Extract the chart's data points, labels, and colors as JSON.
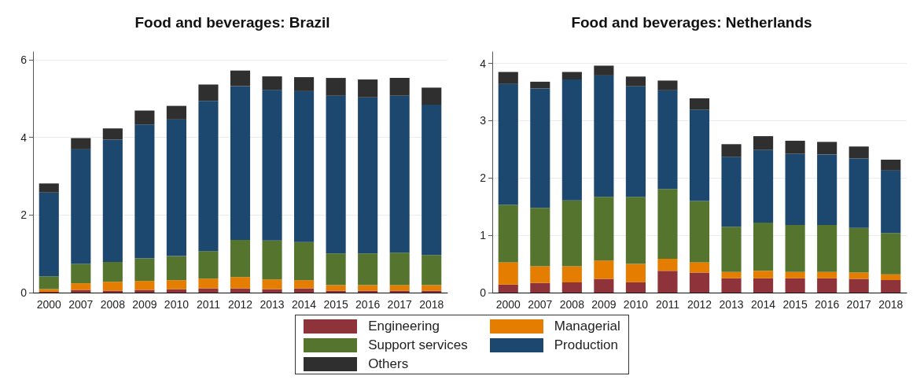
{
  "chart_data": [
    {
      "type": "bar",
      "title": "Food and beverages: Brazil",
      "stacked": true,
      "categories": [
        "2000",
        "2007",
        "2008",
        "2009",
        "2010",
        "2011",
        "2012",
        "2013",
        "2014",
        "2015",
        "2016",
        "2017",
        "2018"
      ],
      "ylim": [
        0,
        6.2
      ],
      "yticks": [
        0,
        2,
        4,
        6
      ],
      "grid": "y",
      "legend": "bottom",
      "series": [
        {
          "name": "Engineering",
          "color": "#8e3339",
          "values": [
            0.02,
            0.07,
            0.05,
            0.07,
            0.09,
            0.11,
            0.11,
            0.09,
            0.11,
            0.05,
            0.05,
            0.05,
            0.05
          ]
        },
        {
          "name": "Managerial",
          "color": "#e57e00",
          "values": [
            0.07,
            0.17,
            0.23,
            0.23,
            0.23,
            0.25,
            0.29,
            0.25,
            0.21,
            0.14,
            0.14,
            0.14,
            0.14
          ]
        },
        {
          "name": "Support services",
          "color": "#55752f",
          "values": [
            0.33,
            0.5,
            0.51,
            0.58,
            0.62,
            0.71,
            0.96,
            1.0,
            0.98,
            0.82,
            0.82,
            0.84,
            0.78
          ]
        },
        {
          "name": "Production",
          "color": "#1c476f",
          "values": [
            2.16,
            2.95,
            3.15,
            3.45,
            3.52,
            3.87,
            3.96,
            3.88,
            3.89,
            4.06,
            4.02,
            4.04,
            3.87
          ]
        },
        {
          "name": "Others",
          "color": "#2f2f2f",
          "values": [
            0.23,
            0.29,
            0.29,
            0.36,
            0.35,
            0.42,
            0.4,
            0.35,
            0.36,
            0.46,
            0.46,
            0.46,
            0.44
          ]
        }
      ]
    },
    {
      "type": "bar",
      "title": "Food and beverages: Netherlands",
      "stacked": true,
      "categories": [
        "2000",
        "2007",
        "2008",
        "2009",
        "2010",
        "2011",
        "2012",
        "2013",
        "2014",
        "2015",
        "2016",
        "2017",
        "2018"
      ],
      "ylim": [
        0,
        4.2
      ],
      "yticks": [
        0,
        1,
        2,
        3,
        4
      ],
      "grid": "y",
      "series": [
        {
          "color": "#8e3339",
          "values": [
            0.14,
            0.17,
            0.18,
            0.24,
            0.18,
            0.38,
            0.35,
            0.25,
            0.25,
            0.25,
            0.25,
            0.24,
            0.22
          ]
        },
        {
          "color": "#e57e00",
          "values": [
            0.39,
            0.29,
            0.28,
            0.32,
            0.32,
            0.21,
            0.18,
            0.11,
            0.13,
            0.11,
            0.11,
            0.11,
            0.1
          ]
        },
        {
          "color": "#55752f",
          "values": [
            1.0,
            1.02,
            1.15,
            1.11,
            1.17,
            1.22,
            1.07,
            0.79,
            0.84,
            0.82,
            0.82,
            0.78,
            0.72
          ]
        },
        {
          "color": "#1c476f",
          "values": [
            2.11,
            2.08,
            2.11,
            2.12,
            1.93,
            1.72,
            1.59,
            1.22,
            1.27,
            1.24,
            1.23,
            1.21,
            1.09
          ]
        },
        {
          "color": "#2f2f2f",
          "values": [
            0.21,
            0.12,
            0.13,
            0.17,
            0.17,
            0.17,
            0.2,
            0.22,
            0.24,
            0.23,
            0.22,
            0.21,
            0.19
          ]
        }
      ]
    }
  ]
}
